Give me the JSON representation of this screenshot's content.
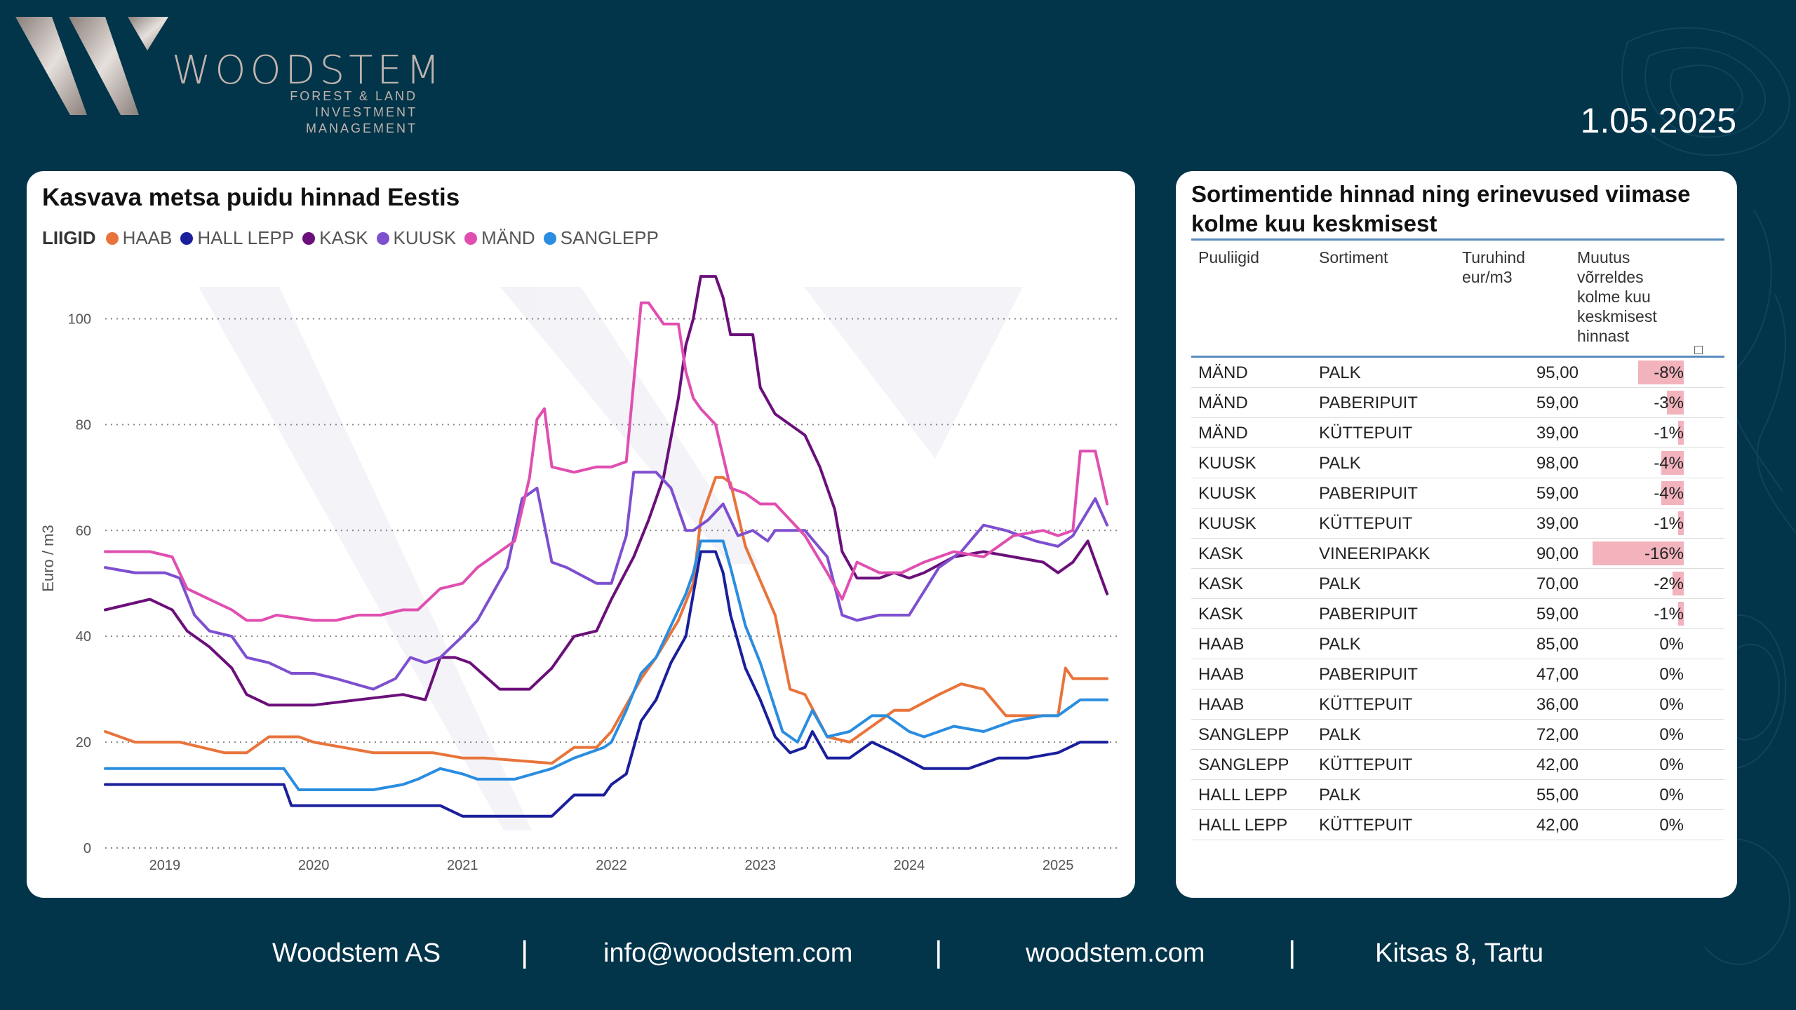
{
  "brand": {
    "name": "WOODSTEM",
    "tagline_1": "FOREST & LAND",
    "tagline_2": "INVESTMENT MANAGEMENT"
  },
  "date": "1.05.2025",
  "chart_card": {
    "title": "Kasvava metsa puidu hinnad Eestis"
  },
  "colors": {
    "HAAB": "#e8743b",
    "HALL LEPP": "#1a1f9c",
    "KASK": "#6b0f7a",
    "KUUSK": "#7e4fcf",
    "MÄND": "#e04fb0",
    "SANGLEPP": "#2a8de0"
  },
  "chart_data": {
    "type": "line",
    "title": "Kasvava metsa puidu hinnad Eestis",
    "legend_title": "LIIGID",
    "legend_position": "top-left",
    "xlabel": "",
    "ylabel": "Euro / m3",
    "xlim": [
      2018.6,
      2025.4
    ],
    "ylim": [
      0,
      110
    ],
    "grid": true,
    "x_ticks": [
      "2019",
      "2020",
      "2021",
      "2022",
      "2023",
      "2024",
      "2025"
    ],
    "x_tick_values": [
      2019,
      2020,
      2021,
      2022,
      2023,
      2024,
      2025
    ],
    "y_ticks": [
      "0",
      "20",
      "40",
      "60",
      "80",
      "100"
    ],
    "y_tick_values": [
      0,
      20,
      40,
      60,
      80,
      100
    ],
    "series": [
      {
        "name": "HAAB",
        "x": [
          2018.6,
          2018.8,
          2019.1,
          2019.4,
          2019.55,
          2019.7,
          2019.9,
          2020.0,
          2020.4,
          2020.6,
          2020.8,
          2021.0,
          2021.15,
          2021.6,
          2021.75,
          2021.9,
          2022.0,
          2022.1,
          2022.2,
          2022.3,
          2022.45,
          2022.55,
          2022.6,
          2022.7,
          2022.75,
          2022.8,
          2022.9,
          2023.1,
          2023.2,
          2023.3,
          2023.45,
          2023.6,
          2023.75,
          2023.9,
          2024.0,
          2024.2,
          2024.35,
          2024.5,
          2024.65,
          2024.8,
          2025.0,
          2025.05,
          2025.1,
          2025.2,
          2025.33
        ],
        "y": [
          22,
          20,
          20,
          18,
          18,
          21,
          21,
          20,
          18,
          18,
          18,
          17,
          17,
          16,
          19,
          19,
          22,
          27,
          32,
          36,
          43,
          50,
          62,
          70,
          70,
          69,
          57,
          44,
          30,
          29,
          21,
          20,
          23,
          26,
          26,
          29,
          31,
          30,
          25,
          25,
          25,
          34,
          32,
          32,
          32
        ]
      },
      {
        "name": "HALL LEPP",
        "x": [
          2018.6,
          2019.3,
          2019.8,
          2019.85,
          2020.7,
          2020.85,
          2021.0,
          2021.35,
          2021.6,
          2021.75,
          2021.95,
          2022.0,
          2022.1,
          2022.2,
          2022.3,
          2022.4,
          2022.5,
          2022.55,
          2022.6,
          2022.7,
          2022.75,
          2022.8,
          2022.9,
          2023.0,
          2023.1,
          2023.2,
          2023.3,
          2023.35,
          2023.45,
          2023.6,
          2023.75,
          2023.9,
          2024.1,
          2024.4,
          2024.6,
          2024.8,
          2025.0,
          2025.15,
          2025.33
        ],
        "y": [
          12,
          12,
          12,
          8,
          8,
          8,
          6,
          6,
          6,
          10,
          10,
          12,
          14,
          24,
          28,
          35,
          40,
          48,
          56,
          56,
          52,
          44,
          34,
          28,
          21,
          18,
          19,
          22,
          17,
          17,
          20,
          18,
          15,
          15,
          17,
          17,
          18,
          20,
          20
        ]
      },
      {
        "name": "KASK",
        "x": [
          2018.6,
          2018.9,
          2019.05,
          2019.15,
          2019.3,
          2019.45,
          2019.55,
          2019.7,
          2019.9,
          2020.0,
          2020.3,
          2020.6,
          2020.75,
          2020.85,
          2020.95,
          2021.05,
          2021.25,
          2021.45,
          2021.6,
          2021.75,
          2021.9,
          2022.0,
          2022.15,
          2022.25,
          2022.35,
          2022.45,
          2022.5,
          2022.55,
          2022.6,
          2022.7,
          2022.75,
          2022.8,
          2022.95,
          2023.0,
          2023.1,
          2023.3,
          2023.4,
          2023.5,
          2023.55,
          2023.65,
          2023.8,
          2023.9,
          2024.0,
          2024.1,
          2024.3,
          2024.5,
          2024.7,
          2024.9,
          2025.0,
          2025.1,
          2025.2,
          2025.33
        ],
        "y": [
          45,
          47,
          45,
          41,
          38,
          34,
          29,
          27,
          27,
          27,
          28,
          29,
          28,
          36,
          36,
          35,
          30,
          30,
          34,
          40,
          41,
          47,
          55,
          62,
          70,
          85,
          95,
          100,
          108,
          108,
          104,
          97,
          97,
          87,
          82,
          78,
          72,
          64,
          56,
          51,
          51,
          52,
          51,
          52,
          55,
          56,
          55,
          54,
          52,
          54,
          58,
          48
        ]
      },
      {
        "name": "KUUSK",
        "x": [
          2018.6,
          2018.8,
          2019.0,
          2019.1,
          2019.2,
          2019.3,
          2019.45,
          2019.55,
          2019.7,
          2019.85,
          2020.0,
          2020.15,
          2020.4,
          2020.55,
          2020.65,
          2020.75,
          2020.85,
          2021.0,
          2021.1,
          2021.3,
          2021.4,
          2021.5,
          2021.6,
          2021.7,
          2021.9,
          2022.0,
          2022.1,
          2022.15,
          2022.3,
          2022.4,
          2022.5,
          2022.55,
          2022.65,
          2022.75,
          2022.85,
          2022.95,
          2023.05,
          2023.1,
          2023.3,
          2023.45,
          2023.55,
          2023.65,
          2023.8,
          2024.0,
          2024.2,
          2024.35,
          2024.5,
          2024.65,
          2024.85,
          2025.0,
          2025.1,
          2025.25,
          2025.33
        ],
        "y": [
          53,
          52,
          52,
          51,
          44,
          41,
          40,
          36,
          35,
          33,
          33,
          32,
          30,
          32,
          36,
          35,
          36,
          40,
          43,
          53,
          66,
          68,
          54,
          53,
          50,
          50,
          59,
          71,
          71,
          68,
          60,
          60,
          62,
          65,
          59,
          60,
          58,
          60,
          60,
          55,
          44,
          43,
          44,
          44,
          53,
          56,
          61,
          60,
          58,
          57,
          59,
          66,
          61
        ]
      },
      {
        "name": "MÄND",
        "x": [
          2018.6,
          2018.9,
          2019.05,
          2019.15,
          2019.3,
          2019.45,
          2019.55,
          2019.65,
          2019.75,
          2020.0,
          2020.15,
          2020.3,
          2020.45,
          2020.6,
          2020.7,
          2020.85,
          2021.0,
          2021.1,
          2021.25,
          2021.35,
          2021.45,
          2021.5,
          2021.55,
          2021.6,
          2021.75,
          2021.9,
          2022.0,
          2022.1,
          2022.2,
          2022.25,
          2022.35,
          2022.45,
          2022.5,
          2022.55,
          2022.6,
          2022.7,
          2022.8,
          2022.9,
          2023.0,
          2023.1,
          2023.3,
          2023.45,
          2023.55,
          2023.65,
          2023.8,
          2023.95,
          2024.1,
          2024.3,
          2024.5,
          2024.7,
          2024.9,
          2025.0,
          2025.1,
          2025.15,
          2025.25,
          2025.33
        ],
        "y": [
          56,
          56,
          55,
          49,
          47,
          45,
          43,
          43,
          44,
          43,
          43,
          44,
          44,
          45,
          45,
          49,
          50,
          53,
          56,
          58,
          70,
          81,
          83,
          72,
          71,
          72,
          72,
          73,
          103,
          103,
          99,
          99,
          90,
          85,
          83,
          80,
          68,
          67,
          65,
          65,
          59,
          52,
          47,
          54,
          52,
          52,
          54,
          56,
          55,
          59,
          60,
          59,
          60,
          75,
          75,
          65
        ]
      },
      {
        "name": "SANGLEPP",
        "x": [
          2018.6,
          2019.3,
          2019.8,
          2019.9,
          2020.4,
          2020.6,
          2020.7,
          2020.85,
          2021.0,
          2021.1,
          2021.35,
          2021.6,
          2021.75,
          2021.95,
          2022.0,
          2022.1,
          2022.2,
          2022.3,
          2022.4,
          2022.5,
          2022.55,
          2022.6,
          2022.75,
          2022.8,
          2022.9,
          2023.0,
          2023.15,
          2023.25,
          2023.35,
          2023.45,
          2023.6,
          2023.75,
          2023.85,
          2024.0,
          2024.1,
          2024.3,
          2024.5,
          2024.7,
          2024.9,
          2025.0,
          2025.15,
          2025.33
        ],
        "y": [
          15,
          15,
          15,
          11,
          11,
          12,
          13,
          15,
          14,
          13,
          13,
          15,
          17,
          19,
          20,
          26,
          33,
          36,
          42,
          48,
          52,
          58,
          58,
          53,
          42,
          35,
          22,
          20,
          26,
          21,
          22,
          25,
          25,
          22,
          21,
          23,
          22,
          24,
          25,
          25,
          28,
          28
        ]
      }
    ]
  },
  "table_card": {
    "title": "Sortimentide hinnad ning erinevused viimase kolme kuu keskmisest",
    "headers": {
      "species": "Puuliigid",
      "assortment": "Sortiment",
      "price": "Turuhind eur/m3",
      "change": "Muutus võrreldes kolme kuu keskmisest hinnast"
    },
    "rows": [
      {
        "species": "MÄND",
        "assortment": "PALK",
        "price": "95,00",
        "change": "-8%",
        "change_value": -8
      },
      {
        "species": "MÄND",
        "assortment": "PABERIPUIT",
        "price": "59,00",
        "change": "-3%",
        "change_value": -3
      },
      {
        "species": "MÄND",
        "assortment": "KÜTTEPUIT",
        "price": "39,00",
        "change": "-1%",
        "change_value": -1
      },
      {
        "species": "KUUSK",
        "assortment": "PALK",
        "price": "98,00",
        "change": "-4%",
        "change_value": -4
      },
      {
        "species": "KUUSK",
        "assortment": "PABERIPUIT",
        "price": "59,00",
        "change": "-4%",
        "change_value": -4
      },
      {
        "species": "KUUSK",
        "assortment": "KÜTTEPUIT",
        "price": "39,00",
        "change": "-1%",
        "change_value": -1
      },
      {
        "species": "KASK",
        "assortment": "VINEERIPAKK",
        "price": "90,00",
        "change": "-16%",
        "change_value": -16
      },
      {
        "species": "KASK",
        "assortment": "PALK",
        "price": "70,00",
        "change": "-2%",
        "change_value": -2
      },
      {
        "species": "KASK",
        "assortment": "PABERIPUIT",
        "price": "59,00",
        "change": "-1%",
        "change_value": -1
      },
      {
        "species": "HAAB",
        "assortment": "PALK",
        "price": "85,00",
        "change": "0%",
        "change_value": 0
      },
      {
        "species": "HAAB",
        "assortment": "PABERIPUIT",
        "price": "47,00",
        "change": "0%",
        "change_value": 0
      },
      {
        "species": "HAAB",
        "assortment": "KÜTTEPUIT",
        "price": "36,00",
        "change": "0%",
        "change_value": 0
      },
      {
        "species": "SANGLEPP",
        "assortment": "PALK",
        "price": "72,00",
        "change": "0%",
        "change_value": 0
      },
      {
        "species": "SANGLEPP",
        "assortment": "KÜTTEPUIT",
        "price": "42,00",
        "change": "0%",
        "change_value": 0
      },
      {
        "species": "HALL LEPP",
        "assortment": "PALK",
        "price": "55,00",
        "change": "0%",
        "change_value": 0
      },
      {
        "species": "HALL LEPP",
        "assortment": "KÜTTEPUIT",
        "price": "42,00",
        "change": "0%",
        "change_value": 0
      }
    ]
  },
  "footer": {
    "company": "Woodstem AS",
    "email": "info@woodstem.com",
    "website": "woodstem.com",
    "address": "Kitsas 8, Tartu",
    "separator": "|"
  }
}
